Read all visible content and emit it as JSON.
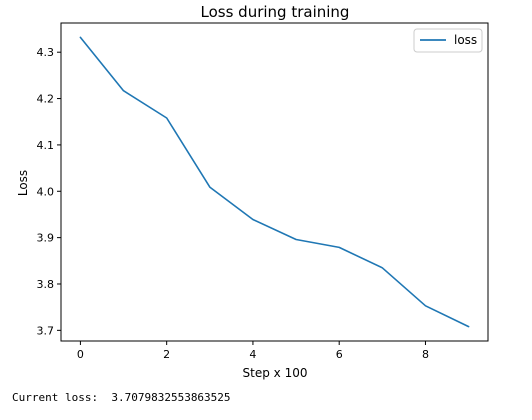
{
  "chart_data": {
    "type": "line",
    "title": "Loss during training",
    "xlabel": "Step x 100",
    "ylabel": "Loss",
    "x": [
      0,
      1,
      2,
      3,
      4,
      5,
      6,
      7,
      8,
      9
    ],
    "series": [
      {
        "name": "loss",
        "values": [
          4.332,
          4.217,
          4.158,
          4.009,
          3.939,
          3.896,
          3.879,
          3.835,
          3.753,
          3.708
        ],
        "color": "#1f77b4"
      }
    ],
    "xlim": [
      -0.45,
      9.45
    ],
    "ylim": [
      3.677,
      4.363
    ],
    "xticks": [
      0,
      2,
      4,
      6,
      8
    ],
    "xtick_labels": [
      "0",
      "2",
      "4",
      "6",
      "8"
    ],
    "yticks": [
      3.7,
      3.8,
      3.9,
      4.0,
      4.1,
      4.2,
      4.3
    ],
    "ytick_labels": [
      "3.7",
      "3.8",
      "3.9",
      "4.0",
      "4.1",
      "4.2",
      "4.3"
    ],
    "legend_position": "top-right",
    "grid": false
  },
  "status": {
    "label": "Current loss:",
    "value": "3.7079832553863525"
  }
}
